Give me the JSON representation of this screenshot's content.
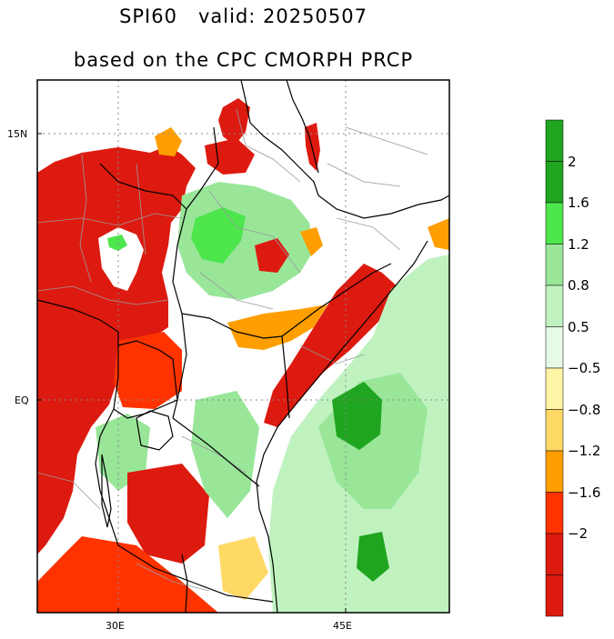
{
  "title": {
    "line1": "SPI60   valid: 20250507",
    "line2": "based on the CPC CMORPH PRCP"
  },
  "axes": {
    "lat_labels": [
      "15N",
      "EQ"
    ],
    "lon_labels": [
      "30E",
      "45E"
    ]
  },
  "colorbar": {
    "wet": [
      {
        "label": "2",
        "color": "#1fa51f"
      },
      {
        "label": "1.6",
        "color": "#4de64d"
      },
      {
        "label": "1.2",
        "color": "#99e699"
      },
      {
        "label": "0.8",
        "color": "#bff2bf"
      },
      {
        "label": "0.5",
        "color": "#e6fae6"
      }
    ],
    "dry": [
      {
        "label": "−0.5",
        "color": "#fff5a6"
      },
      {
        "label": "−0.8",
        "color": "#ffd966"
      },
      {
        "label": "−1.2",
        "color": "#ff9e00"
      },
      {
        "label": "−1.6",
        "color": "#ff3300"
      },
      {
        "label": "−2",
        "color": "#dd1a0f"
      }
    ],
    "wet_top_color": "#1fa51f",
    "dry_bottom_color": "#dd1a0f"
  },
  "colors": {
    "extreme_dry": "#dd1a0f",
    "severe_dry": "#ff3300",
    "moderate_dry": "#ff9e00",
    "mild_dry": "#ffd966",
    "very_wet": "#1fa51f",
    "wet": "#4de64d",
    "moderately_wet": "#99e699",
    "slightly_wet": "#bff2bf",
    "near_normal": "#ffffff",
    "borders": "#000000",
    "admin_lines": "#9a9a9a",
    "grid": "#888888"
  }
}
